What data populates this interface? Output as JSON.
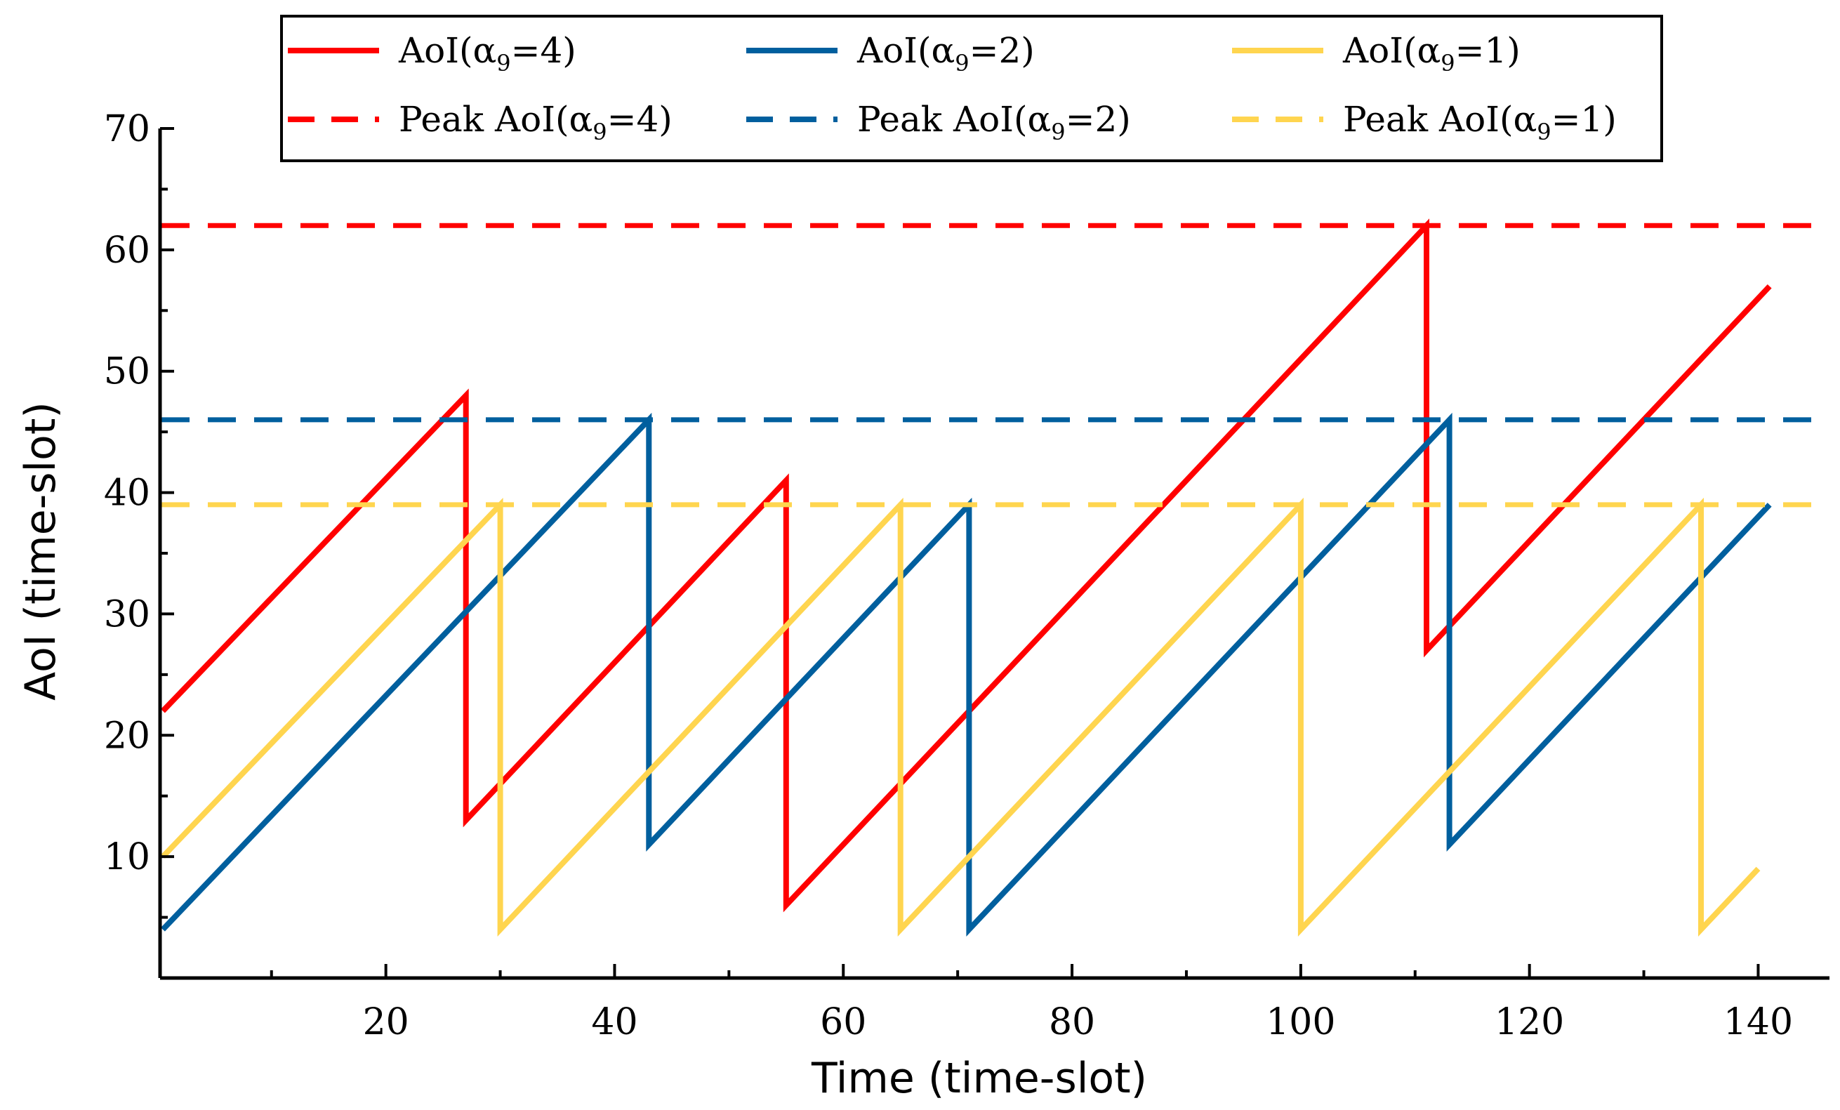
{
  "chart_data": {
    "type": "line",
    "title": "",
    "xlabel": "Time (time-slot)",
    "ylabel": "AoI (time-slot)",
    "xlim": [
      0.5,
      150
    ],
    "ylim": [
      0,
      70
    ],
    "x_major_ticks": [
      20,
      40,
      60,
      80,
      100,
      120,
      140
    ],
    "x_minor_ticks": [
      10,
      30,
      50,
      70,
      90,
      110,
      130,
      150
    ],
    "y_major_ticks": [
      10,
      20,
      30,
      40,
      50,
      60,
      70
    ],
    "y_minor_ticks": [
      5,
      15,
      25,
      35,
      45,
      55,
      65
    ],
    "x_tick_labels": [
      "20",
      "40",
      "60",
      "80",
      "100",
      "120",
      "140"
    ],
    "y_tick_labels": [
      "10",
      "20",
      "30",
      "40",
      "50",
      "60",
      "70"
    ],
    "legend_position": "top",
    "series": [
      {
        "name": "AoI(α9=4)",
        "legend_label": "AoI(α",
        "legend_sub": "9",
        "legend_suffix": "=4)",
        "color": "#ff0000",
        "style": "solid",
        "x": [
          0.5,
          27,
          27,
          55,
          55,
          111,
          111,
          141
        ],
        "y": [
          22,
          48,
          13,
          41,
          6,
          62,
          27,
          57
        ]
      },
      {
        "name": "AoI(α9=2)",
        "legend_label": "AoI(α",
        "legend_sub": "9",
        "legend_suffix": "=2)",
        "color": "#005f9e",
        "style": "solid",
        "x": [
          0.5,
          43,
          43,
          71,
          71,
          113,
          113,
          141
        ],
        "y": [
          4,
          46,
          11,
          39,
          4,
          46,
          11,
          39
        ]
      },
      {
        "name": "AoI(α9=1)",
        "legend_label": "AoI(α",
        "legend_sub": "9",
        "legend_suffix": "=1)",
        "color": "#ffd54f",
        "style": "solid",
        "x": [
          0.5,
          30,
          30,
          65,
          65,
          100,
          100,
          135,
          135,
          140
        ],
        "y": [
          10,
          39,
          4,
          39,
          4,
          39,
          4,
          39,
          4,
          9
        ]
      },
      {
        "name": "Peak AoI(α9=4)",
        "legend_label": "Peak AoI(α",
        "legend_sub": "9",
        "legend_suffix": "=4)",
        "color": "#ff0000",
        "style": "dashed",
        "value": 62
      },
      {
        "name": "Peak AoI(α9=2)",
        "legend_label": "Peak AoI(α",
        "legend_sub": "9",
        "legend_suffix": "=2)",
        "color": "#005f9e",
        "style": "dashed",
        "value": 46
      },
      {
        "name": "Peak AoI(α9=1)",
        "legend_label": "Peak AoI(α",
        "legend_sub": "9",
        "legend_suffix": "=1)",
        "color": "#ffd54f",
        "style": "dashed",
        "value": 39
      }
    ]
  }
}
